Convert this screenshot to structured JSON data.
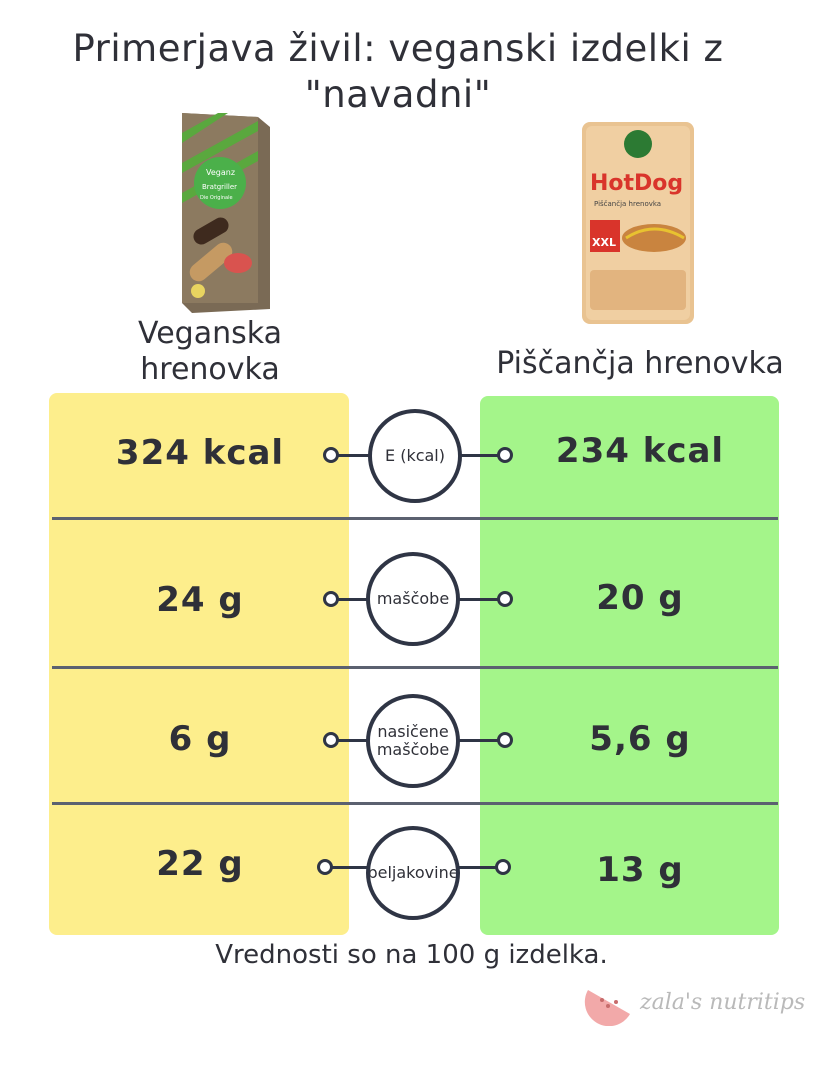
{
  "title": "Primerjava živil: veganski izdelki z \"navadni\"",
  "products": {
    "left": {
      "name": "Veganska hrenovka",
      "image_icon": "vegan-sausage-package-image",
      "package_text": {
        "brand": "Veganz",
        "line1": "Bratgriller",
        "line2": "Die Originale"
      }
    },
    "right": {
      "name": "Piščančja hrenovka",
      "image_icon": "chicken-hotdog-package-image",
      "package_text": {
        "brand": "HotDog",
        "line1": "Piščančja hrenovka",
        "line2": "XXL"
      }
    }
  },
  "rows": [
    {
      "label": "E (kcal)",
      "left": "324 kcal",
      "right": "234 kcal"
    },
    {
      "label": "maščobe",
      "left": "24 g",
      "right": "20 g"
    },
    {
      "label": "nasičene maščobe",
      "left": "6 g",
      "right": "5,6 g"
    },
    {
      "label": "beljakovine",
      "left": "22 g",
      "right": "13 g"
    }
  ],
  "footnote": "Vrednosti so na 100 g izdelka.",
  "brand": "zala's nutritips",
  "colors": {
    "left_panel": "#fdee8c",
    "right_panel": "#a4f58a",
    "text": "#2f3038",
    "lines": "#5b6170"
  }
}
